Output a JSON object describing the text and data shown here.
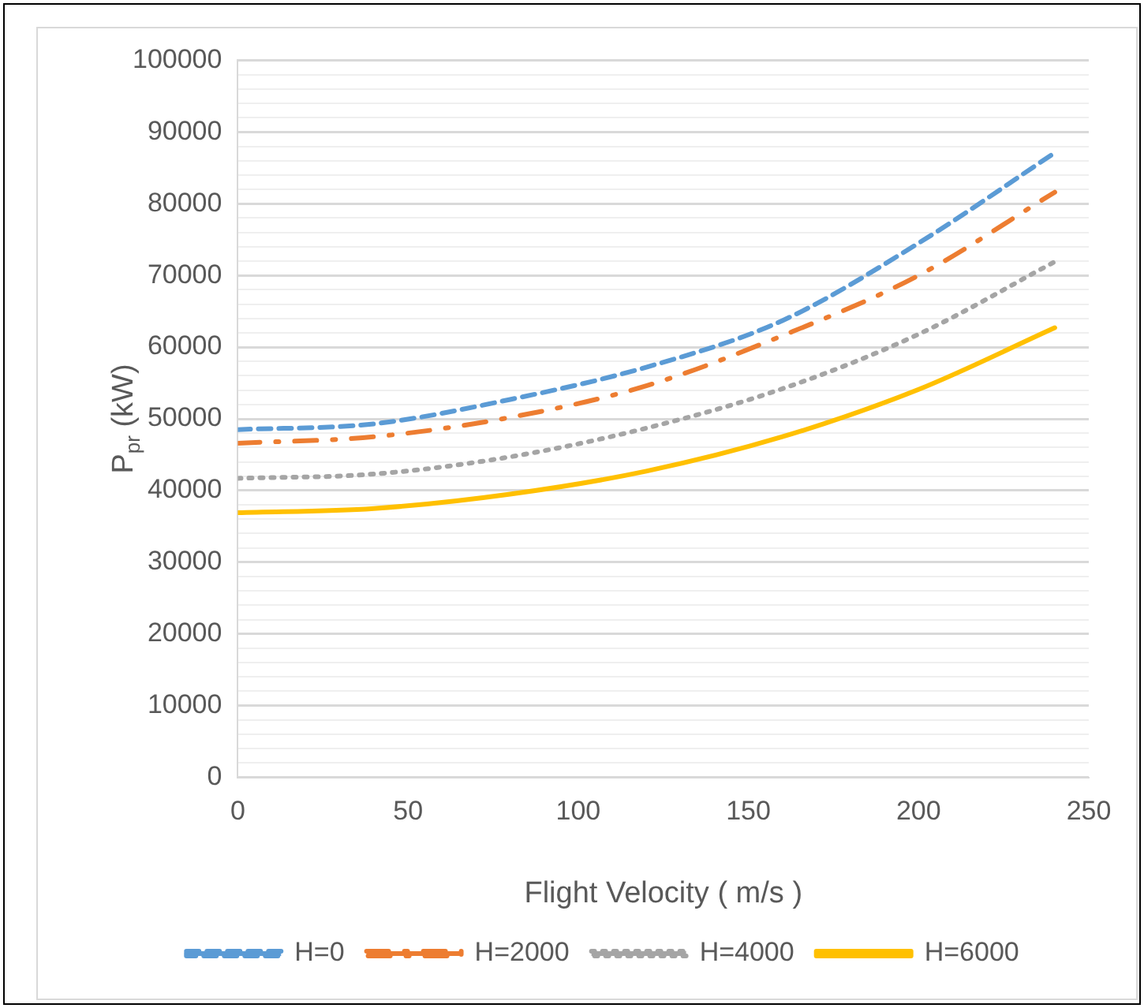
{
  "chart_data": {
    "type": "line",
    "xlabel": "Flight Velocity ( m/s )",
    "ylabel": "P$_{pr}$ (kW)",
    "x": [
      0,
      40,
      80,
      120,
      160,
      200,
      240
    ],
    "xlim": [
      0,
      250
    ],
    "xticks": [
      0,
      50,
      100,
      150,
      200,
      250
    ],
    "ylim": [
      0,
      100000
    ],
    "yticks": [
      0,
      {
        "value": 2000,
        "label": null
      },
      {
        "value": 4000,
        "label": null
      },
      {
        "value": 6000,
        "label": null
      },
      {
        "value": 8000,
        "label": null
      },
      10000,
      {
        "value": 12000,
        "label": null
      },
      {
        "value": 14000,
        "label": null
      },
      {
        "value": 16000,
        "label": null
      },
      {
        "value": 18000,
        "label": null
      },
      20000,
      {
        "value": 22000,
        "label": null
      },
      {
        "value": 24000,
        "label": null
      },
      {
        "value": 26000,
        "label": null
      },
      {
        "value": 28000,
        "label": null
      },
      30000,
      {
        "value": 32000,
        "label": null
      },
      {
        "value": 34000,
        "label": null
      },
      {
        "value": 36000,
        "label": null
      },
      {
        "value": 38000,
        "label": null
      },
      40000,
      {
        "value": 42000,
        "label": null
      },
      {
        "value": 44000,
        "label": null
      },
      {
        "value": 46000,
        "label": null
      },
      {
        "value": 48000,
        "label": null
      },
      50000,
      {
        "value": 52000,
        "label": null
      },
      {
        "value": 54000,
        "label": null
      },
      {
        "value": 56000,
        "label": null
      },
      {
        "value": 58000,
        "label": null
      },
      60000,
      {
        "value": 62000,
        "label": null
      },
      {
        "value": 64000,
        "label": null
      },
      {
        "value": 66000,
        "label": null
      },
      {
        "value": 68000,
        "label": null
      },
      70000,
      {
        "value": 72000,
        "label": null
      },
      {
        "value": 74000,
        "label": null
      },
      {
        "value": 76000,
        "label": null
      },
      {
        "value": 78000,
        "label": null
      },
      80000,
      {
        "value": 82000,
        "label": null
      },
      {
        "value": 84000,
        "label": null
      },
      {
        "value": 86000,
        "label": null
      },
      {
        "value": 88000,
        "label": null
      },
      90000,
      {
        "value": 92000,
        "label": null
      },
      {
        "value": 94000,
        "label": null
      },
      {
        "value": 96000,
        "label": null
      },
      {
        "value": 98000,
        "label": null
      },
      100000
    ],
    "grid": "y",
    "legend": "bottom",
    "marker": "none",
    "series": [
      {
        "name": "H=0",
        "color": "#5b9bd5",
        "line_style": "dashed",
        "values": [
          48500,
          49300,
          52700,
          57200,
          63700,
          74500,
          87100
        ]
      },
      {
        "name": "H=2000",
        "color": "#ed7d31",
        "line_style": "dashdot",
        "values": [
          46600,
          47500,
          50200,
          54600,
          61600,
          70000,
          81600
        ]
      },
      {
        "name": "H=4000",
        "color": "#a5a5a5",
        "line_style": "dotted",
        "values": [
          41700,
          42300,
          44700,
          48700,
          54200,
          61800,
          71900
        ]
      },
      {
        "name": "H=6000",
        "color": "#ffc000",
        "line_style": "solid",
        "values": [
          36900,
          37500,
          39500,
          42700,
          47500,
          54100,
          62700
        ]
      }
    ]
  }
}
